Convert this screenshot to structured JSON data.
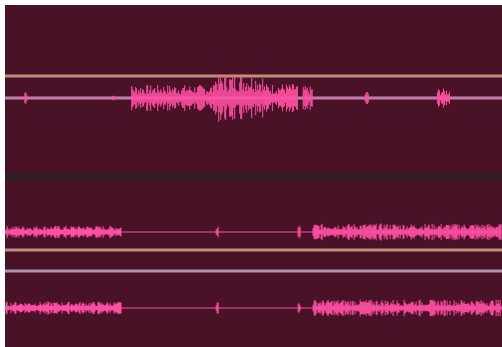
{
  "colors": {
    "track_background": "#4a1226",
    "waveform": "#ff4fa3",
    "selection_boundary_line": "#c28c7a",
    "playhead_line": "#a894b0",
    "divider": "#2e2025",
    "frame": "#ffffff"
  },
  "tracks": [
    {
      "id": "track-1",
      "channels": [
        {
          "name": "channel-1",
          "segments": [
            {
              "start": 0.04,
              "end": 0.045,
              "amp": 0.35,
              "density": 1
            },
            {
              "start": 0.215,
              "end": 0.222,
              "amp": 0.15,
              "density": 1
            },
            {
              "start": 0.255,
              "end": 0.42,
              "amp": 0.55,
              "density": 1
            },
            {
              "start": 0.42,
              "end": 0.52,
              "amp": 1.0,
              "density": 1
            },
            {
              "start": 0.52,
              "end": 0.59,
              "amp": 0.6,
              "density": 1
            },
            {
              "start": 0.6,
              "end": 0.62,
              "amp": 0.5,
              "density": 1
            },
            {
              "start": 0.725,
              "end": 0.732,
              "amp": 0.3,
              "density": 1
            },
            {
              "start": 0.87,
              "end": 0.895,
              "amp": 0.4,
              "density": 1
            }
          ]
        }
      ]
    },
    {
      "id": "track-2",
      "channels": [
        {
          "name": "channel-1",
          "segments": [
            {
              "start": 0.0,
              "end": 0.235,
              "amp": 0.45,
              "density": 1
            },
            {
              "start": 0.235,
              "end": 0.62,
              "amp": 0.02,
              "density": 1
            },
            {
              "start": 0.425,
              "end": 0.43,
              "amp": 0.5,
              "density": 1
            },
            {
              "start": 0.59,
              "end": 0.595,
              "amp": 0.5,
              "density": 1
            },
            {
              "start": 0.62,
              "end": 1.0,
              "amp": 0.6,
              "density": 1
            }
          ]
        },
        {
          "name": "channel-2",
          "segments": [
            {
              "start": 0.0,
              "end": 0.235,
              "amp": 0.45,
              "density": 1
            },
            {
              "start": 0.235,
              "end": 0.62,
              "amp": 0.02,
              "density": 1
            },
            {
              "start": 0.425,
              "end": 0.43,
              "amp": 0.5,
              "density": 1
            },
            {
              "start": 0.59,
              "end": 0.595,
              "amp": 0.5,
              "density": 1
            },
            {
              "start": 0.62,
              "end": 1.0,
              "amp": 0.6,
              "density": 1
            }
          ]
        }
      ]
    }
  ]
}
